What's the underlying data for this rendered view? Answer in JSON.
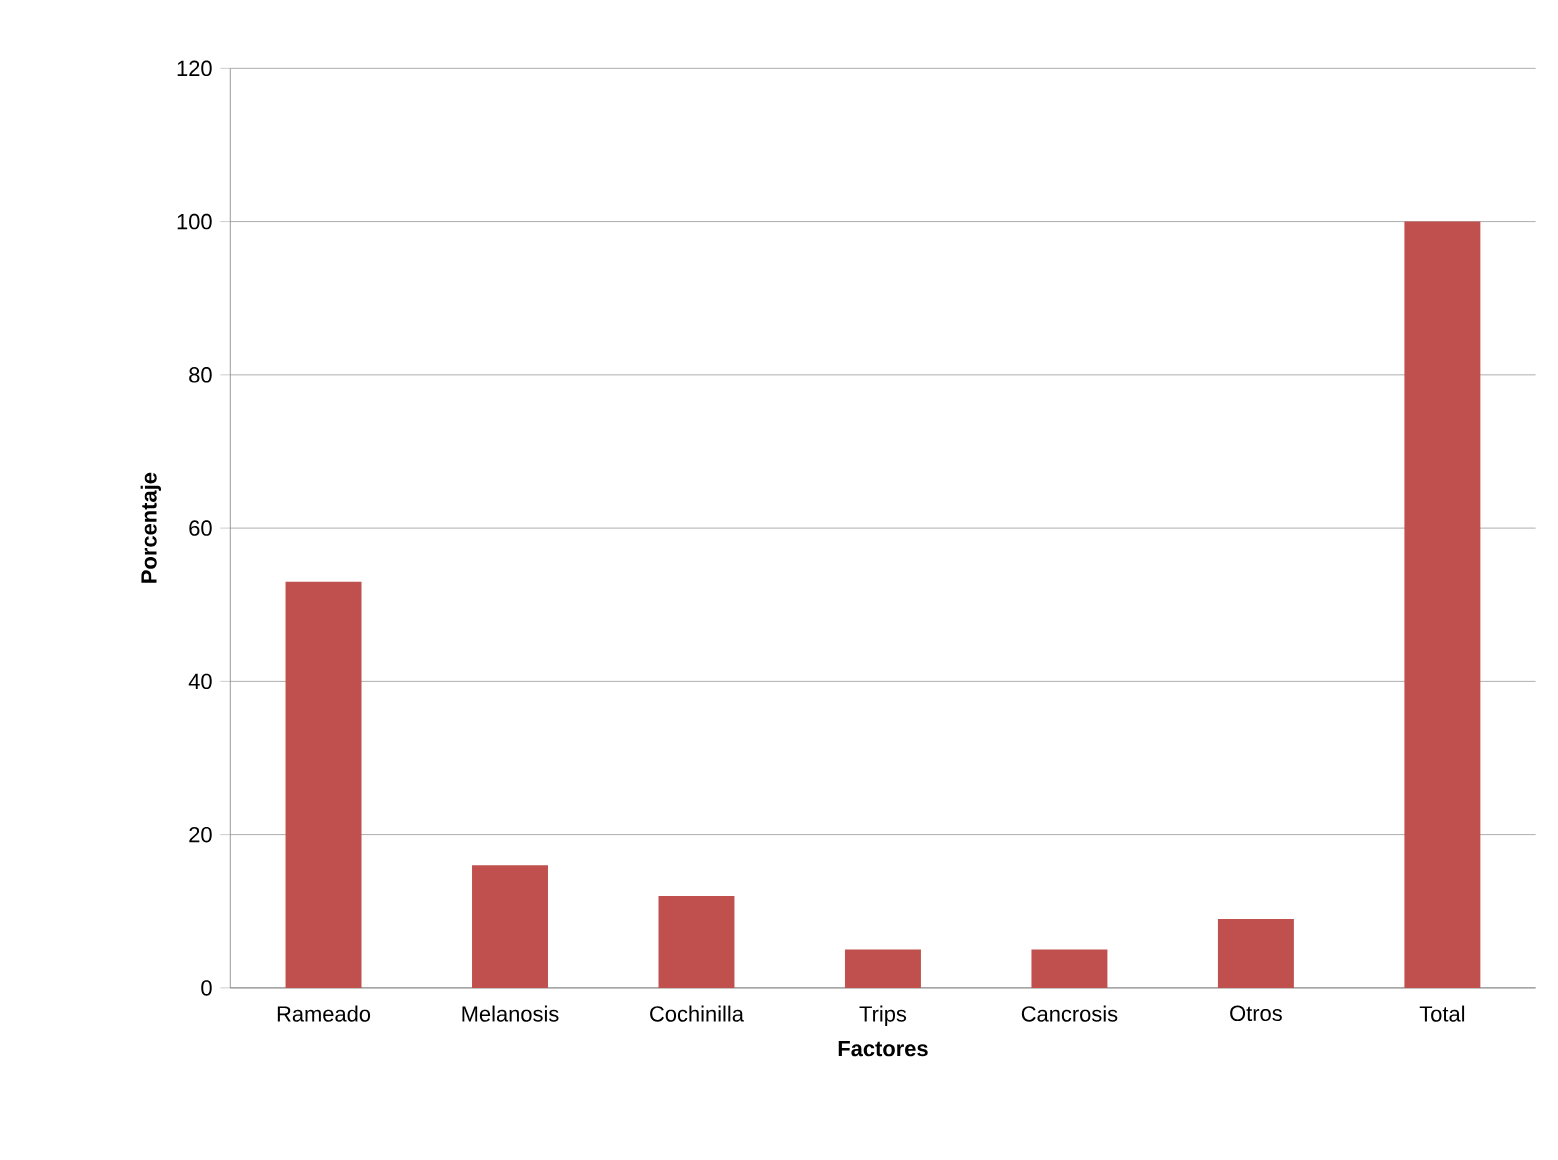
{
  "chart_data": {
    "type": "bar",
    "xlabel": "Factores",
    "ylabel": "Porcentaje",
    "categories": [
      "Rameado",
      "Melanosis",
      "Cochinilla",
      "Trips",
      "Cancrosis",
      "Otros",
      "Total"
    ],
    "values": [
      53,
      16,
      12,
      5,
      5,
      9,
      100
    ],
    "color": "#c0504d",
    "ylim": [
      0,
      120
    ],
    "yticks": [
      0,
      20,
      40,
      60,
      80,
      100,
      120
    ],
    "grid": "y"
  }
}
